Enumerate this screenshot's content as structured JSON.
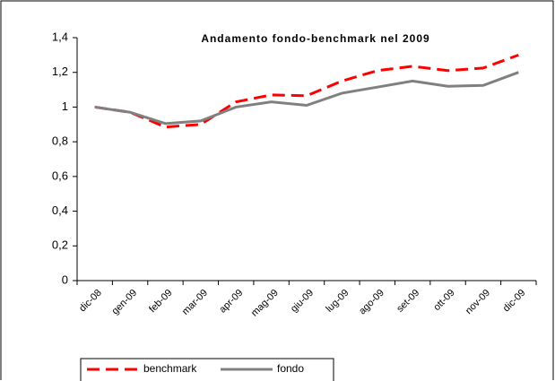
{
  "chart_data": {
    "type": "line",
    "title": "Andamento fondo-benchmark nel 2009",
    "categories": [
      "dic-08",
      "gen-09",
      "feb-09",
      "mar-09",
      "apr-09",
      "mag-09",
      "giu-09",
      "lug-09",
      "ago-09",
      "set-09",
      "ott-09",
      "nov-09",
      "dic-09"
    ],
    "series": [
      {
        "name": "benchmark",
        "color": "#ff0000",
        "dashed": true,
        "values": [
          1.0,
          0.97,
          0.885,
          0.9,
          1.03,
          1.07,
          1.065,
          1.15,
          1.21,
          1.235,
          1.21,
          1.225,
          1.3
        ]
      },
      {
        "name": "fondo",
        "color": "#808080",
        "dashed": false,
        "values": [
          1.0,
          0.97,
          0.905,
          0.92,
          1.0,
          1.03,
          1.01,
          1.08,
          1.115,
          1.15,
          1.12,
          1.125,
          1.2
        ]
      }
    ],
    "ylim": [
      0,
      1.4
    ],
    "yticks": [
      0,
      {
        "value": 0.2,
        "label": "0,2"
      },
      {
        "value": 0.4,
        "label": "0,4"
      },
      {
        "value": 0.6,
        "label": "0,6"
      },
      {
        "value": 0.8,
        "label": "0,8"
      },
      1,
      {
        "value": 1.2,
        "label": "1,2"
      },
      {
        "value": 1.4,
        "label": "1,4"
      }
    ],
    "grid": false,
    "legend": "bottom"
  }
}
